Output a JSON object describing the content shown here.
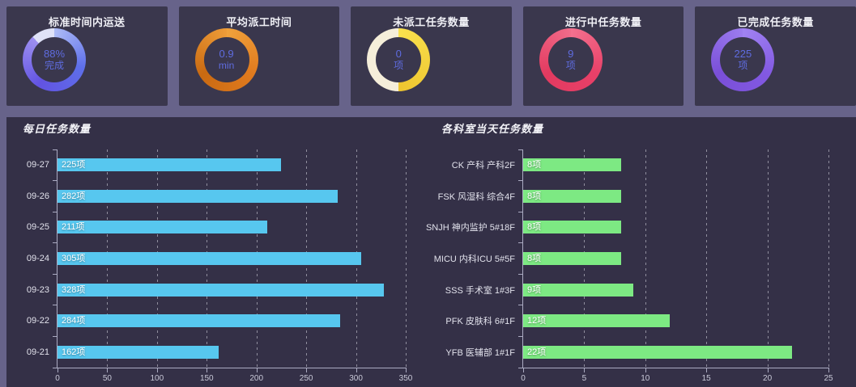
{
  "kpi_cards": [
    {
      "title": "标准时间内运送",
      "value": "88%",
      "unit": "完成",
      "ring": {
        "percent": 88,
        "colors": [
          "#AEBCF6",
          "#5E6FEA",
          "#6253E2",
          "#9D8FF0"
        ],
        "track_color": "#DFE2F7"
      }
    },
    {
      "title": "平均派工时间",
      "value": "0.9",
      "unit": "min",
      "ring": {
        "percent": 100,
        "colors": [
          "#F0A23C",
          "#E07A1E",
          "#C96A12",
          "#EE9C38"
        ],
        "track_color": "#F0A23C"
      }
    },
    {
      "title": "未派工任务数量",
      "value": "0",
      "unit": "项",
      "ring": {
        "percent": 50,
        "colors": [
          "#F9E14E",
          "#EEC52F"
        ],
        "track_color": "#F5EEDA"
      }
    },
    {
      "title": "进行中任务数量",
      "value": "9",
      "unit": "项",
      "ring": {
        "percent": 100,
        "colors": [
          "#F4718F",
          "#E84068",
          "#E23A60",
          "#F26C8A"
        ],
        "track_color": "#F4718F"
      }
    },
    {
      "title": "已完成任务数量",
      "value": "225",
      "unit": "项",
      "ring": {
        "percent": 100,
        "colors": [
          "#A183F2",
          "#8259E2",
          "#7A4FD8",
          "#9C7CEE"
        ],
        "track_color": "#A183F2"
      }
    }
  ],
  "chart_data": [
    {
      "type": "bar",
      "orientation": "horizontal",
      "title": "每日任务数量",
      "categories": [
        "09-27",
        "09-26",
        "09-25",
        "09-24",
        "09-23",
        "09-22",
        "09-21"
      ],
      "values": [
        225,
        282,
        211,
        305,
        328,
        284,
        162
      ],
      "value_labels": [
        "225项",
        "282项",
        "211项",
        "305项",
        "328项",
        "284项",
        "162项"
      ],
      "xlim": [
        0,
        350
      ],
      "xticks": [
        0,
        50,
        100,
        150,
        200,
        250,
        300,
        350
      ],
      "bar_color": "#57C7EF",
      "grid": "dashed-vertical",
      "legend": "none"
    },
    {
      "type": "bar",
      "orientation": "horizontal",
      "title": "各科室当天任务数量",
      "categories": [
        "CK 产科 产科2F",
        "FSK 风湿科 综合4F",
        "SNJH 神内监护 5#18F",
        "MICU 内科ICU 5#5F",
        "SSS 手术室 1#3F",
        "PFK 皮肤科 6#1F",
        "YFB 医辅部 1#1F"
      ],
      "values": [
        8,
        8,
        8,
        8,
        9,
        12,
        22
      ],
      "value_labels": [
        "8项",
        "8项",
        "8项",
        "8项",
        "9项",
        "12项",
        "22项"
      ],
      "xlim": [
        0,
        25
      ],
      "xticks": [
        0,
        5,
        10,
        15,
        20,
        25
      ],
      "bar_color": "#7DE983",
      "grid": "dashed-vertical",
      "legend": "none"
    }
  ],
  "colors": {
    "page_bg": "#67638A",
    "card_bg": "#3A374D",
    "panel_bg": "#343047",
    "kpi_center_text": "#5F6CE0",
    "axis": "#ABABC2",
    "bar_cyan": "#57C7EF",
    "bar_green": "#7DE983"
  }
}
